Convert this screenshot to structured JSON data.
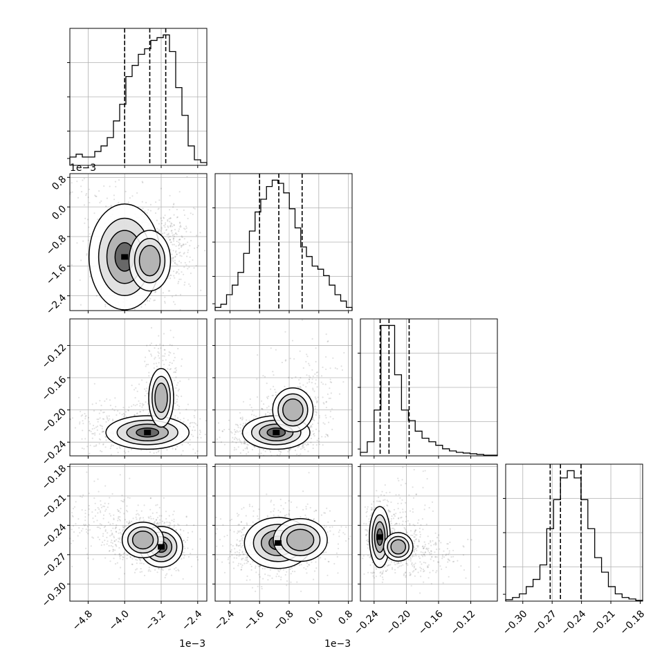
{
  "chart_data": {
    "type": "corner",
    "variables": [
      {
        "range": [
          -5.2,
          -2.2
        ],
        "ticks": [
          -4.8,
          -4.0,
          -3.2,
          -2.4
        ],
        "tick_labels": [
          "−4.8",
          "−4.0",
          "−3.2",
          "−2.4"
        ],
        "offset_text": "1e−3",
        "quantiles": [
          -4.0,
          -3.45,
          -3.1
        ],
        "hist": [
          1.5,
          2,
          1.5,
          1.5,
          2.5,
          3.5,
          5,
          8,
          11,
          16,
          18,
          20,
          21,
          22.5,
          23,
          23.5,
          20.5,
          14,
          9,
          3.5,
          1,
          0.5
        ]
      },
      {
        "range": [
          -2.8,
          0.9
        ],
        "ticks": [
          -2.4,
          -1.6,
          -0.8,
          0.0,
          0.8
        ],
        "tick_labels": [
          "−2.4",
          "−1.6",
          "−0.8",
          "0.0",
          "0.8"
        ],
        "offset_text": "1e−3",
        "quantiles": [
          -1.6,
          -1.08,
          -0.45
        ],
        "hist": [
          0.5,
          1,
          2.5,
          4,
          6,
          9,
          12.5,
          15.5,
          17.5,
          19.5,
          20.5,
          20,
          18.5,
          16,
          13,
          10,
          8.5,
          7,
          6.5,
          5.5,
          4,
          2.5,
          1.5,
          0.5
        ]
      },
      {
        "range": [
          -0.257,
          -0.087
        ],
        "ticks": [
          -0.24,
          -0.2,
          -0.16,
          -0.12
        ],
        "tick_labels": [
          "−0.24",
          "−0.20",
          "−0.16",
          "−0.12"
        ],
        "offset_text": "",
        "quantiles": [
          -0.2325,
          -0.2215,
          -0.1965
        ],
        "hist": [
          0.5,
          2,
          6.5,
          18.5,
          18.5,
          11.5,
          6.5,
          5,
          3.5,
          2.5,
          2,
          1.5,
          1,
          0.7,
          0.5,
          0.4,
          0.3,
          0.2,
          0.1,
          0.1
        ]
      },
      {
        "range": [
          -0.3175,
          -0.1775
        ],
        "ticks": [
          -0.3,
          -0.27,
          -0.24,
          -0.21,
          -0.18
        ],
        "tick_labels": [
          "−0.30",
          "−0.27",
          "−0.24",
          "−0.21",
          "−0.18"
        ],
        "offset_text": "",
        "quantiles": [
          -0.272,
          -0.2615,
          -0.2405
        ],
        "hist": [
          0.2,
          0.5,
          1,
          2,
          3,
          5,
          10,
          14,
          17,
          18,
          17,
          14,
          10,
          6,
          4,
          2,
          1,
          0.5,
          0.3,
          0.1
        ]
      }
    ],
    "joint": [
      {
        "row": 1,
        "col": 0,
        "points": [
          [
            -4.0,
            -1.35
          ],
          [
            -3.45,
            -1.45
          ],
          [
            -3.0,
            -0.9
          ],
          [
            -4.9,
            0.4
          ],
          [
            -3.4,
            -1.0
          ]
        ],
        "spread": [
          [
            0.3,
            0.55
          ],
          [
            0.25,
            0.45
          ],
          [
            0.2,
            0.35
          ],
          [
            0.18,
            0.12
          ],
          [
            0.2,
            0.3
          ]
        ],
        "weights": [
          0.35,
          0.3,
          0.2,
          0.03,
          0.12
        ]
      },
      {
        "row": 2,
        "col": 0,
        "points": [
          [
            -3.5,
            -0.228
          ],
          [
            -3.2,
            -0.185
          ],
          [
            -4.4,
            -0.215
          ],
          [
            -3.2,
            -0.15
          ]
        ],
        "spread": [
          [
            0.35,
            0.008
          ],
          [
            0.15,
            0.02
          ],
          [
            0.4,
            0.01
          ],
          [
            0.15,
            0.02
          ]
        ],
        "weights": [
          0.6,
          0.2,
          0.12,
          0.08
        ]
      },
      {
        "row": 2,
        "col": 1,
        "points": [
          [
            -1.15,
            -0.228
          ],
          [
            -0.7,
            -0.2
          ],
          [
            -0.2,
            -0.17
          ],
          [
            -1.8,
            -0.235
          ]
        ],
        "spread": [
          [
            0.35,
            0.008
          ],
          [
            0.3,
            0.015
          ],
          [
            0.3,
            0.02
          ],
          [
            0.3,
            0.006
          ]
        ],
        "weights": [
          0.55,
          0.2,
          0.12,
          0.13
        ]
      },
      {
        "row": 3,
        "col": 0,
        "points": [
          [
            -3.2,
            -0.262
          ],
          [
            -3.6,
            -0.255
          ],
          [
            -4.2,
            -0.24
          ],
          [
            -4.9,
            -0.23
          ]
        ],
        "spread": [
          [
            0.18,
            0.008
          ],
          [
            0.25,
            0.01
          ],
          [
            0.3,
            0.01
          ],
          [
            0.25,
            0.012
          ]
        ],
        "weights": [
          0.4,
          0.35,
          0.15,
          0.1
        ]
      },
      {
        "row": 3,
        "col": 1,
        "points": [
          [
            -1.1,
            -0.258
          ],
          [
            -0.5,
            -0.255
          ],
          [
            -1.6,
            -0.26
          ]
        ],
        "spread": [
          [
            0.35,
            0.01
          ],
          [
            0.4,
            0.012
          ],
          [
            0.35,
            0.01
          ]
        ],
        "weights": [
          0.5,
          0.25,
          0.25
        ]
      },
      {
        "row": 3,
        "col": 2,
        "points": [
          [
            -0.233,
            -0.252
          ],
          [
            -0.21,
            -0.262
          ],
          [
            -0.18,
            -0.272
          ],
          [
            -0.2,
            -0.225
          ]
        ],
        "spread": [
          [
            0.005,
            0.012
          ],
          [
            0.01,
            0.008
          ],
          [
            0.015,
            0.008
          ],
          [
            0.01,
            0.015
          ]
        ],
        "weights": [
          0.45,
          0.25,
          0.2,
          0.1
        ]
      }
    ]
  }
}
